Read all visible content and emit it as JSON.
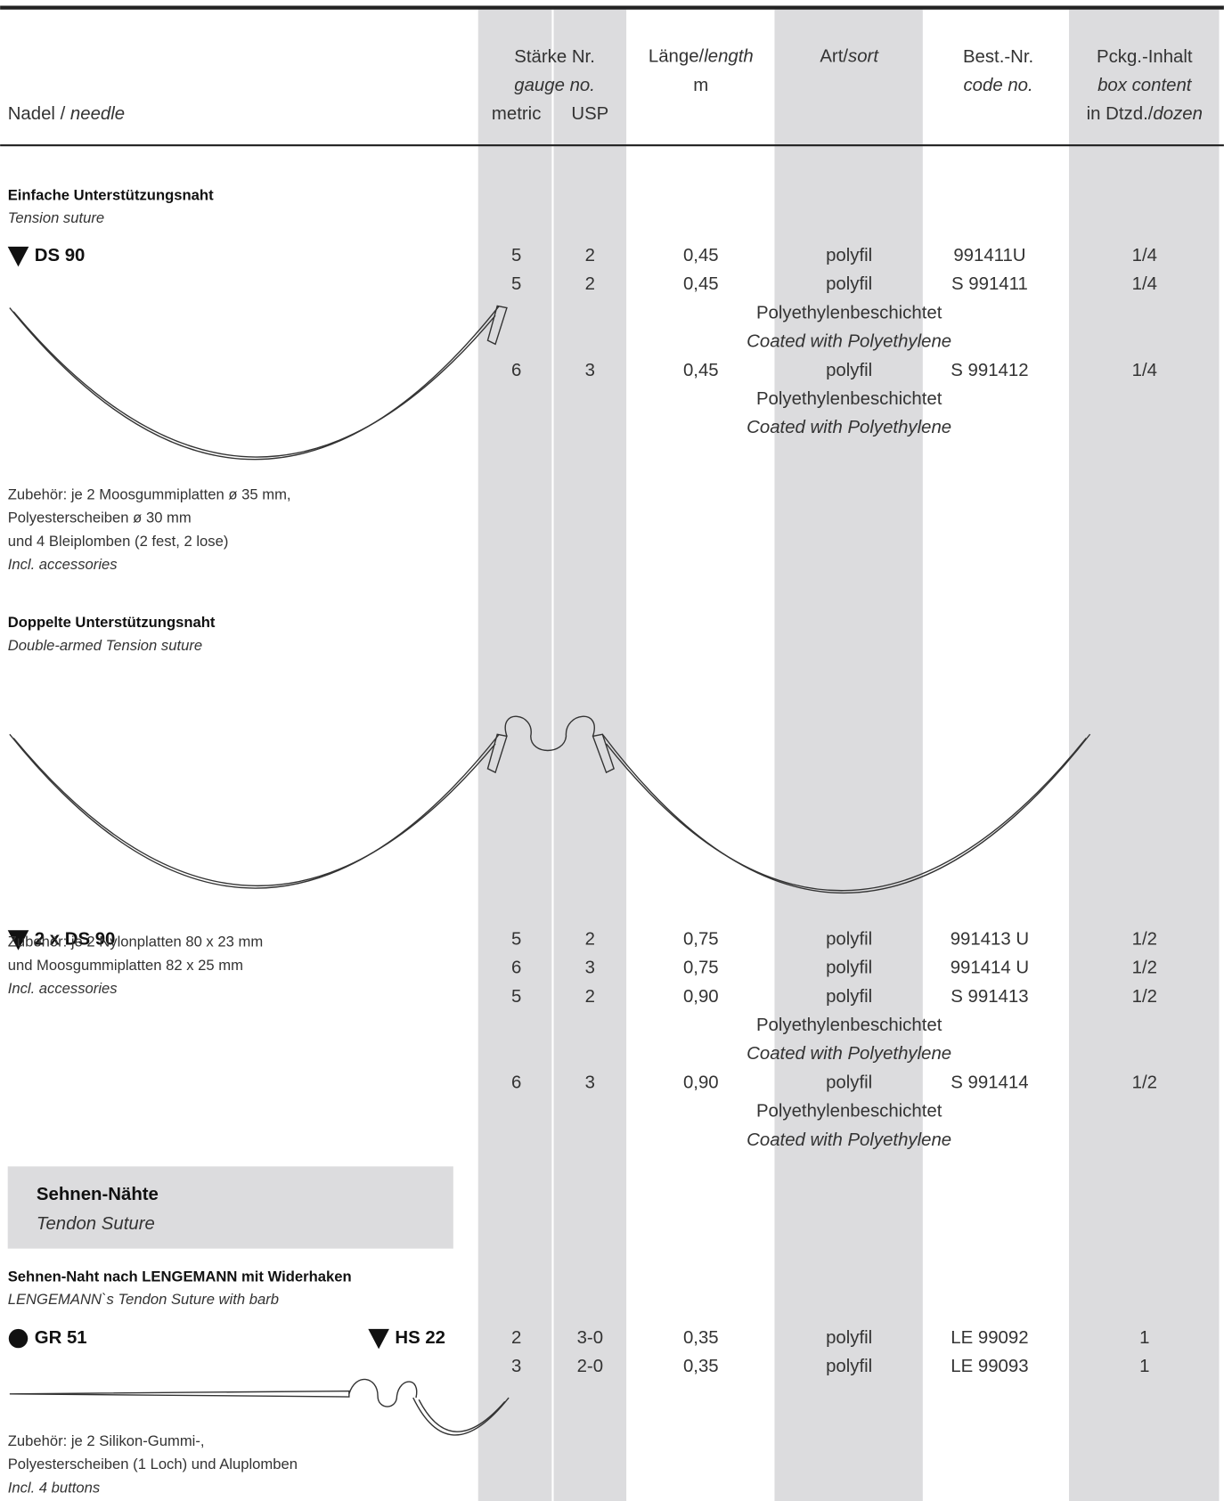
{
  "header": {
    "needle": {
      "de": "Nadel / ",
      "en": "needle"
    },
    "gauge": {
      "de": "Stärke Nr.",
      "en": "gauge no.",
      "metric": "metric",
      "usp": "USP"
    },
    "length": {
      "de": "Länge/",
      "en": "length",
      "unit": "m"
    },
    "sort": {
      "de": "Art/",
      "en": "sort"
    },
    "code": {
      "de": "Best.-Nr.",
      "en": "code no."
    },
    "box": {
      "de": "Pckg.-Inhalt",
      "en": "box content",
      "unit_de": "in Dtzd./",
      "unit_en": "dozen"
    }
  },
  "sections": [
    {
      "title": "Einfache Unterstützungsnaht",
      "subtitle": "Tension suture",
      "needles": [
        {
          "name": "DS 90",
          "marker": "triangle"
        }
      ],
      "rows": [
        {
          "cells": [
            "5",
            "2",
            "0,45",
            "polyfil",
            "991411U",
            "1/4"
          ]
        },
        {
          "cells": [
            "5",
            "2",
            "0,45",
            "polyfil",
            "S 991411",
            "1/4"
          ]
        },
        {
          "coating_de": "Polyethylenbeschichtet",
          "coating_en": "Coated with Polyethylene"
        },
        {
          "cells": [
            "6",
            "3",
            "0,45",
            "polyfil",
            "S 991412",
            "1/4"
          ]
        },
        {
          "coating_de": "Polyethylenbeschichtet",
          "coating_en": "Coated with Polyethylene"
        }
      ],
      "accessories": [
        "Zubehör: je 2 Moosgummiplatten ø 35 mm,",
        "Polyesterscheiben ø 30 mm",
        "und 4 Bleiplomben (2 fest, 2 lose)"
      ],
      "accessories_en": "Incl. accessories"
    },
    {
      "title": "Doppelte Unterstützungsnaht",
      "subtitle": "Double-armed Tension suture",
      "needles": [
        {
          "name": "2 x DS 90",
          "marker": "triangle"
        }
      ],
      "rows": [
        {
          "cells": [
            "5",
            "2",
            "0,75",
            "polyfil",
            "991413 U",
            "1/2"
          ]
        },
        {
          "cells": [
            "6",
            "3",
            "0,75",
            "polyfil",
            "991414 U",
            "1/2"
          ]
        },
        {
          "cells": [
            "5",
            "2",
            "0,90",
            "polyfil",
            "S 991413",
            "1/2"
          ]
        },
        {
          "coating_de": "Polyethylenbeschichtet",
          "coating_en": "Coated with Polyethylene"
        },
        {
          "cells": [
            "6",
            "3",
            "0,90",
            "polyfil",
            "S 991414",
            "1/2"
          ]
        },
        {
          "coating_de": "Polyethylenbeschichtet",
          "coating_en": "Coated with Polyethylene"
        }
      ],
      "accessories": [
        "Zubehör: je 2 Nylonplatten 80 x 23 mm",
        "und Moosgummiplatten 82 x 25 mm"
      ],
      "accessories_en": "Incl. accessories"
    },
    {
      "title": "Sehnen-Naht nach LENGEMANN mit Widerhaken",
      "subtitle": "LENGEMANN`s Tendon Suture with barb",
      "needles": [
        {
          "name": "GR 51",
          "marker": "circle"
        },
        {
          "name": "HS 22",
          "marker": "triangle"
        }
      ],
      "rows": [
        {
          "cells": [
            "2",
            "3-0",
            "0,35",
            "polyfil",
            "LE 99092",
            "1"
          ]
        },
        {
          "cells": [
            "3",
            "2-0",
            "0,35",
            "polyfil",
            "LE 99093",
            "1"
          ]
        }
      ],
      "accessories": [
        "Zubehör: je 2 Silikon-Gummi-,",
        "Polyesterscheiben (1 Loch) und Aluplomben"
      ],
      "accessories_en": "Incl. 4 buttons"
    }
  ],
  "category": {
    "de": "Sehnen-Nähte",
    "en": "Tendon Suture"
  }
}
